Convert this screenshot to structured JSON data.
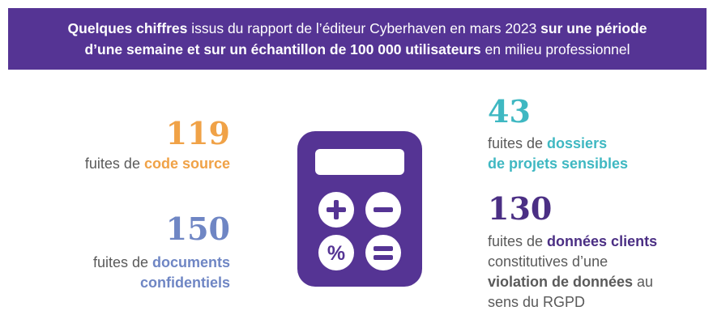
{
  "banner": {
    "line1_bold_a": "Quelques chiffres",
    "line1_normal": " issus du rapport de l’éditeur Cyberhaven en mars 2023 ",
    "line1_bold_b": "sur une période",
    "line2_bold": "d’une semaine et sur un échantillon de 100 000 utilisateurs",
    "line2_normal": " en milieu professionnel"
  },
  "stats": {
    "code": {
      "number": "119",
      "prefix": "fuites de ",
      "highlight": "code source"
    },
    "docs": {
      "number": "150",
      "prefix": "fuites de ",
      "highlight_line1": "documents",
      "highlight_line2": "confidentiels"
    },
    "dossiers": {
      "number": "43",
      "prefix": "fuites de ",
      "highlight_line1": "dossiers",
      "highlight_line2": "de projets sensibles"
    },
    "clients": {
      "number": "130",
      "prefix": "fuites de ",
      "highlight": "données clients",
      "line2": "constitutives d’une",
      "line3_bold": "violation de données",
      "line3_normal": " au",
      "line4": "sens du RGPD"
    }
  },
  "calculator": {
    "percent_symbol": "%"
  },
  "colors": {
    "banner": "#553494",
    "orange": "#f0a247",
    "blue": "#6f86c4",
    "teal": "#3fb8c2",
    "purple": "#4b2f84",
    "calculator": "#553494"
  },
  "icons": [
    "calculator-icon",
    "plus-icon",
    "minus-icon",
    "percent-icon",
    "equals-icon"
  ]
}
